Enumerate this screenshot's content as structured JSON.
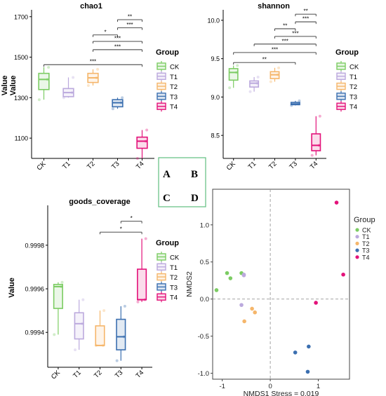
{
  "figure": {
    "panel_letters": [
      "A",
      "B",
      "C",
      "D"
    ],
    "group_legend_title": "Group",
    "groups": [
      "CK",
      "T1",
      "T2",
      "T3",
      "T4"
    ],
    "colors": {
      "CK": "#7ccc63",
      "T1": "#bba9dd",
      "T2": "#f5b66b",
      "T3": "#3b6fb0",
      "T4": "#e3127a"
    },
    "significance_marks": [
      "*",
      "**",
      "***"
    ]
  },
  "chart_data": [
    {
      "panel": "A",
      "type": "boxplot",
      "title": "chao1",
      "ylabel": "Value",
      "categories": [
        "CK",
        "T1",
        "T2",
        "T3",
        "T4"
      ],
      "yticks": [
        1100,
        1300,
        1500,
        1700
      ],
      "ylim": [
        1000,
        1720
      ],
      "boxes": [
        {
          "group": "CK",
          "min": 1290,
          "q1": 1340,
          "median": 1390,
          "q3": 1420,
          "max": 1450
        },
        {
          "group": "T1",
          "min": 1300,
          "q1": 1305,
          "median": 1325,
          "q3": 1345,
          "max": 1400
        },
        {
          "group": "T2",
          "min": 1360,
          "q1": 1375,
          "median": 1398,
          "q3": 1420,
          "max": 1440
        },
        {
          "group": "T3",
          "min": 1245,
          "q1": 1255,
          "median": 1275,
          "q3": 1290,
          "max": 1300
        },
        {
          "group": "T4",
          "min": 1000,
          "q1": 1050,
          "median": 1085,
          "q3": 1105,
          "max": 1140
        }
      ],
      "comparisons": [
        {
          "from": "CK",
          "to": "T4",
          "label": "***",
          "y": 1463
        },
        {
          "from": "T2",
          "to": "T3",
          "label": "*",
          "y": 1610
        },
        {
          "from": "T2",
          "to": "T4",
          "label": "***",
          "y": 1537
        },
        {
          "from": "T2",
          "to": "T4",
          "label": "***",
          "y": 1578
        },
        {
          "from": "T3",
          "to": "T4",
          "label": "***",
          "y": 1645
        },
        {
          "from": "T3",
          "to": "T4",
          "label": "**",
          "y": 1685
        }
      ]
    },
    {
      "panel": "B",
      "type": "boxplot",
      "title": "shannon",
      "ylabel": "Value",
      "categories": [
        "CK",
        "T1",
        "T2",
        "T3",
        "T4"
      ],
      "yticks": [
        8.5,
        9.0,
        9.5,
        10.0
      ],
      "ylim": [
        8.2,
        10.1
      ],
      "boxes": [
        {
          "group": "CK",
          "min": 9.12,
          "q1": 9.22,
          "median": 9.32,
          "q3": 9.37,
          "max": 9.41
        },
        {
          "group": "T1",
          "min": 9.07,
          "q1": 9.13,
          "median": 9.18,
          "q3": 9.21,
          "max": 9.26
        },
        {
          "group": "T2",
          "min": 9.2,
          "q1": 9.24,
          "median": 9.29,
          "q3": 9.33,
          "max": 9.38
        },
        {
          "group": "T3",
          "min": 8.89,
          "q1": 8.9,
          "median": 8.91,
          "q3": 8.93,
          "max": 8.95
        },
        {
          "group": "T4",
          "min": 8.24,
          "q1": 8.3,
          "median": 8.37,
          "q3": 8.52,
          "max": 8.75
        }
      ],
      "comparisons": [
        {
          "from": "CK",
          "to": "T3",
          "label": "**",
          "y": 9.45
        },
        {
          "from": "CK",
          "to": "T4",
          "label": "***",
          "y": 9.58
        },
        {
          "from": "T1",
          "to": "T4",
          "label": "***",
          "y": 9.69
        },
        {
          "from": "T2",
          "to": "T4",
          "label": "***",
          "y": 9.79
        },
        {
          "from": "T2",
          "to": "T3",
          "label": "**",
          "y": 9.89
        },
        {
          "from": "T3",
          "to": "T4",
          "label": "***",
          "y": 9.98
        },
        {
          "from": "T3",
          "to": "T4",
          "label": "**",
          "y": 10.08
        }
      ]
    },
    {
      "panel": "C",
      "type": "boxplot",
      "title": "goods_coverage",
      "ylabel": "Value",
      "categories": [
        "CK",
        "T1",
        "T2",
        "T3",
        "T4"
      ],
      "yticks": [
        0.9994,
        0.9996,
        0.9998
      ],
      "ylim": [
        0.99924,
        0.99997
      ],
      "boxes": [
        {
          "group": "CK",
          "min": 0.99939,
          "q1": 0.99951,
          "median": 0.99961,
          "q3": 0.99962,
          "max": 0.99963
        },
        {
          "group": "T1",
          "min": 0.99932,
          "q1": 0.99937,
          "median": 0.99944,
          "q3": 0.99949,
          "max": 0.99955
        },
        {
          "group": "T2",
          "min": 0.99934,
          "q1": 0.99934,
          "median": 0.99934,
          "q3": 0.99943,
          "max": 0.9995
        },
        {
          "group": "T3",
          "min": 0.99927,
          "q1": 0.99932,
          "median": 0.99938,
          "q3": 0.99946,
          "max": 0.99952
        },
        {
          "group": "T4",
          "min": 0.99954,
          "q1": 0.99955,
          "median": 0.99955,
          "q3": 0.99969,
          "max": 0.99983
        }
      ],
      "comparisons": [
        {
          "from": "T2",
          "to": "T4",
          "label": "*",
          "y": 0.99986
        },
        {
          "from": "T3",
          "to": "T4",
          "label": "*",
          "y": 0.99991
        }
      ]
    },
    {
      "panel": "D",
      "type": "scatter",
      "xlabel": "NMDS1",
      "annotation": "Stress = 0.019",
      "ylabel": "NMDS2",
      "xlim": [
        -1.2,
        1.65
      ],
      "ylim": [
        -1.08,
        1.48
      ],
      "xticks": [
        -1,
        0,
        1
      ],
      "yticks": [
        -1.0,
        -0.5,
        0.0,
        0.5,
        1.0
      ],
      "points": [
        {
          "group": "CK",
          "x": -1.12,
          "y": 0.12
        },
        {
          "group": "CK",
          "x": -0.9,
          "y": 0.35
        },
        {
          "group": "CK",
          "x": -0.83,
          "y": 0.28
        },
        {
          "group": "CK",
          "x": -0.6,
          "y": 0.35
        },
        {
          "group": "T1",
          "x": -0.55,
          "y": 0.32
        },
        {
          "group": "T1",
          "x": -0.55,
          "y": 0.33
        },
        {
          "group": "T1",
          "x": -0.6,
          "y": -0.08
        },
        {
          "group": "T2",
          "x": -0.54,
          "y": -0.3
        },
        {
          "group": "T2",
          "x": -0.38,
          "y": -0.13
        },
        {
          "group": "T2",
          "x": -0.32,
          "y": -0.18
        },
        {
          "group": "T3",
          "x": 0.52,
          "y": -0.72
        },
        {
          "group": "T3",
          "x": 0.8,
          "y": -0.64
        },
        {
          "group": "T3",
          "x": 0.78,
          "y": -0.98
        },
        {
          "group": "T4",
          "x": 0.95,
          "y": -0.05
        },
        {
          "group": "T4",
          "x": 1.38,
          "y": 1.3
        },
        {
          "group": "T4",
          "x": 1.52,
          "y": 0.33
        }
      ]
    }
  ]
}
